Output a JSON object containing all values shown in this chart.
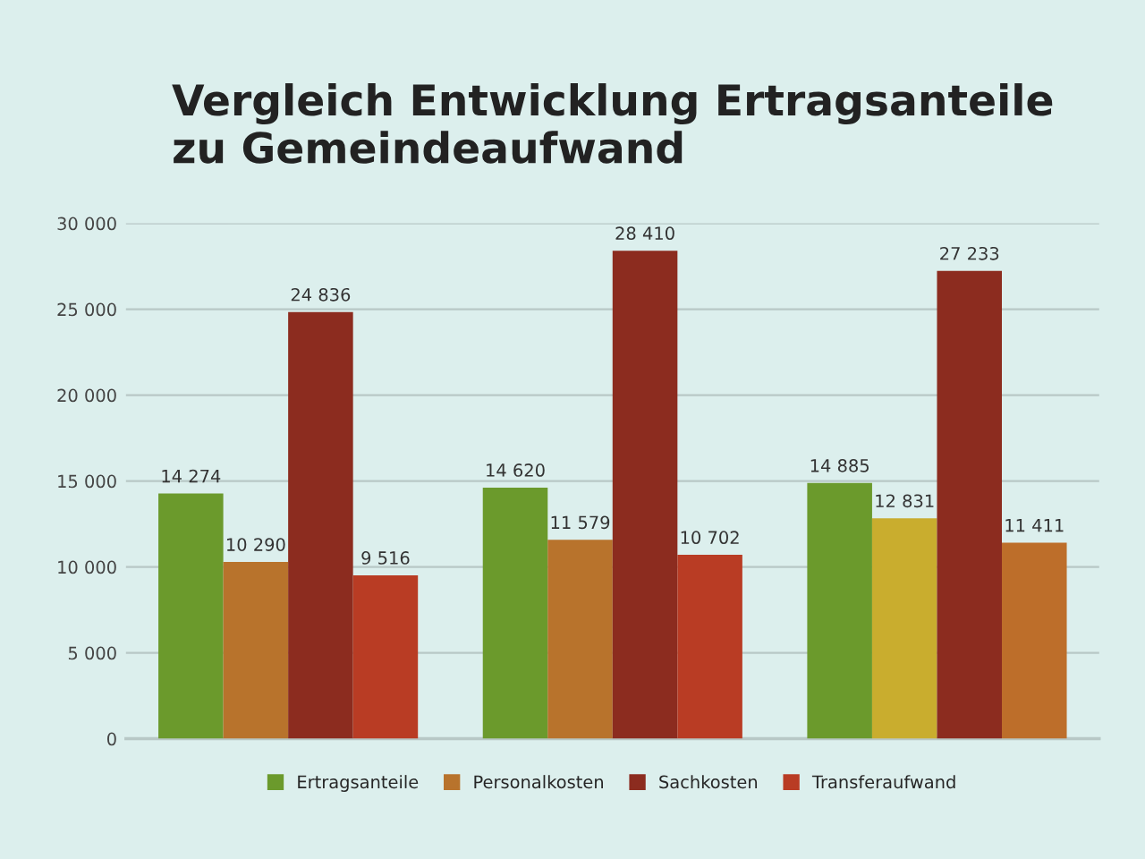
{
  "chart_data": {
    "type": "bar",
    "title": "Vergleich Entwicklung Ertragsanteile\nzu Gemeindeaufwand",
    "categories": [
      null,
      null,
      null
    ],
    "series": [
      {
        "name": "Ertragsanteile",
        "color": "#6b9a2c",
        "colors": [
          "#6b9a2c",
          "#6b9a2c",
          "#6b9a2c"
        ],
        "values": [
          14274,
          14620,
          14885
        ],
        "value_labels": [
          "14 274",
          "14 620",
          "14 885"
        ]
      },
      {
        "name": "Personalkosten",
        "color": "#b8732c",
        "colors": [
          "#b8732c",
          "#b8732c",
          "#c9ad2e"
        ],
        "values": [
          10290,
          11579,
          12831
        ],
        "value_labels": [
          "10 290",
          "11 579",
          "12 831"
        ]
      },
      {
        "name": "Sachkosten",
        "color": "#8c2c1f",
        "colors": [
          "#8c2c1f",
          "#8c2c1f",
          "#8c2c1f"
        ],
        "values": [
          24836,
          28410,
          27233
        ],
        "value_labels": [
          "24 836",
          "28 410",
          "27 233"
        ]
      },
      {
        "name": "Transferaufwand",
        "color": "#b93c24",
        "colors": [
          "#b93c24",
          "#b93c24",
          "#bd6e2a"
        ],
        "values": [
          9516,
          10702,
          11411
        ],
        "value_labels": [
          "9 516",
          "10 702",
          "11 411"
        ]
      }
    ],
    "ylim": [
      0,
      30000
    ],
    "yticks": [
      0,
      {
        "value": 5000,
        "label": "5 000"
      },
      {
        "value": 10000,
        "label": "10 000"
      },
      {
        "value": 15000,
        "label": "15 000"
      },
      {
        "value": 20000,
        "label": "20 000"
      },
      {
        "value": 25000,
        "label": "25 000"
      },
      {
        "value": 30000,
        "label": "30 000"
      }
    ],
    "grid": "y",
    "legend": "bottom"
  }
}
